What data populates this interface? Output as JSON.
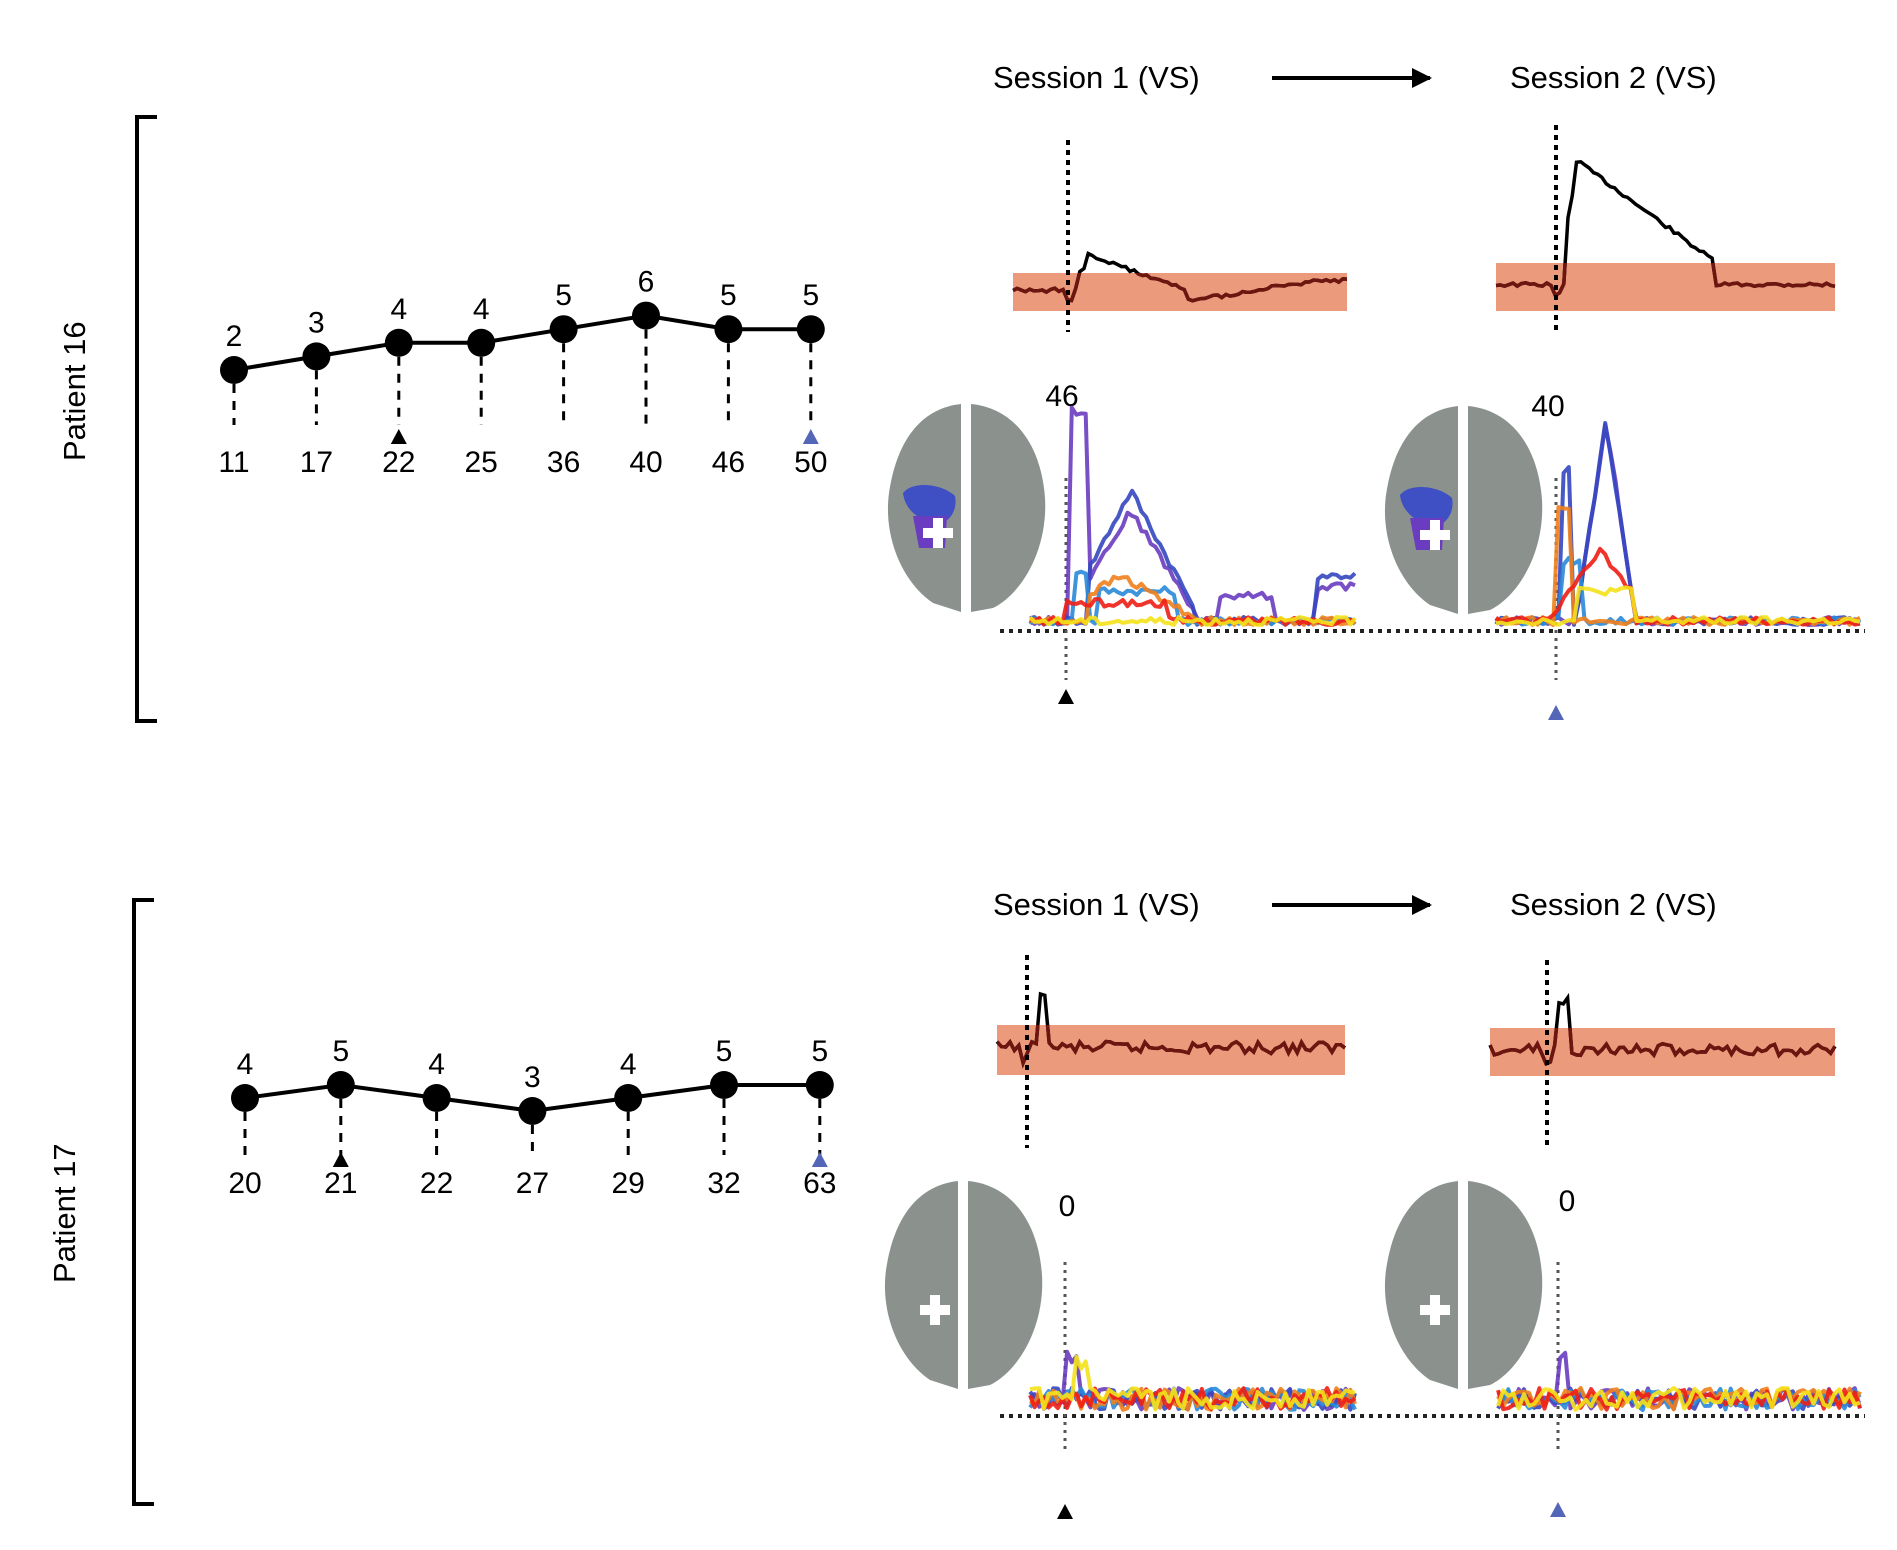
{
  "figure": {
    "colors": {
      "line": "#000000",
      "band": "#ec9a7c",
      "baseline_trace": "#6e1510",
      "brain": "#8b928e",
      "session1_marker": "#000000",
      "session2_marker": "#5466b8",
      "lesion_blue": "#3f4fc4",
      "lesion_purple": "#6a3cc0",
      "trace_colors": [
        "#6a3cc0",
        "#3447c0",
        "#2a8ad8",
        "#f0801c",
        "#f01e14",
        "#f5e21a"
      ]
    },
    "panels": [
      {
        "patient_label": "Patient 16",
        "timeline": {
          "scores": [
            2,
            3,
            4,
            4,
            5,
            6,
            5,
            5
          ],
          "score_labels": [
            "2",
            "3",
            "4",
            "4",
            "5",
            "6",
            "5",
            "5"
          ],
          "days": [
            "11",
            "17",
            "22",
            "25",
            "36",
            "40",
            "46",
            "50"
          ],
          "session1_marker_index": 2,
          "session2_marker_index": 7
        },
        "session1_label": "Session 1 (VS)",
        "session2_label": "Session 2 (VS)",
        "session1_count": "46",
        "session2_count": "40",
        "session1_lesion": true,
        "session2_lesion": true
      },
      {
        "patient_label": "Patient 17",
        "timeline": {
          "scores": [
            4,
            5,
            4,
            3,
            4,
            5,
            5
          ],
          "score_labels": [
            "4",
            "5",
            "4",
            "3",
            "4",
            "5",
            "5"
          ],
          "days": [
            "20",
            "21",
            "22",
            "27",
            "29",
            "32",
            "63"
          ],
          "session1_marker_index": 1,
          "session2_marker_index": 6
        },
        "session1_label": "Session 1 (VS)",
        "session2_label": "Session 2 (VS)",
        "session1_count": "0",
        "session2_count": "0",
        "session1_lesion": false,
        "session2_lesion": false
      }
    ]
  }
}
